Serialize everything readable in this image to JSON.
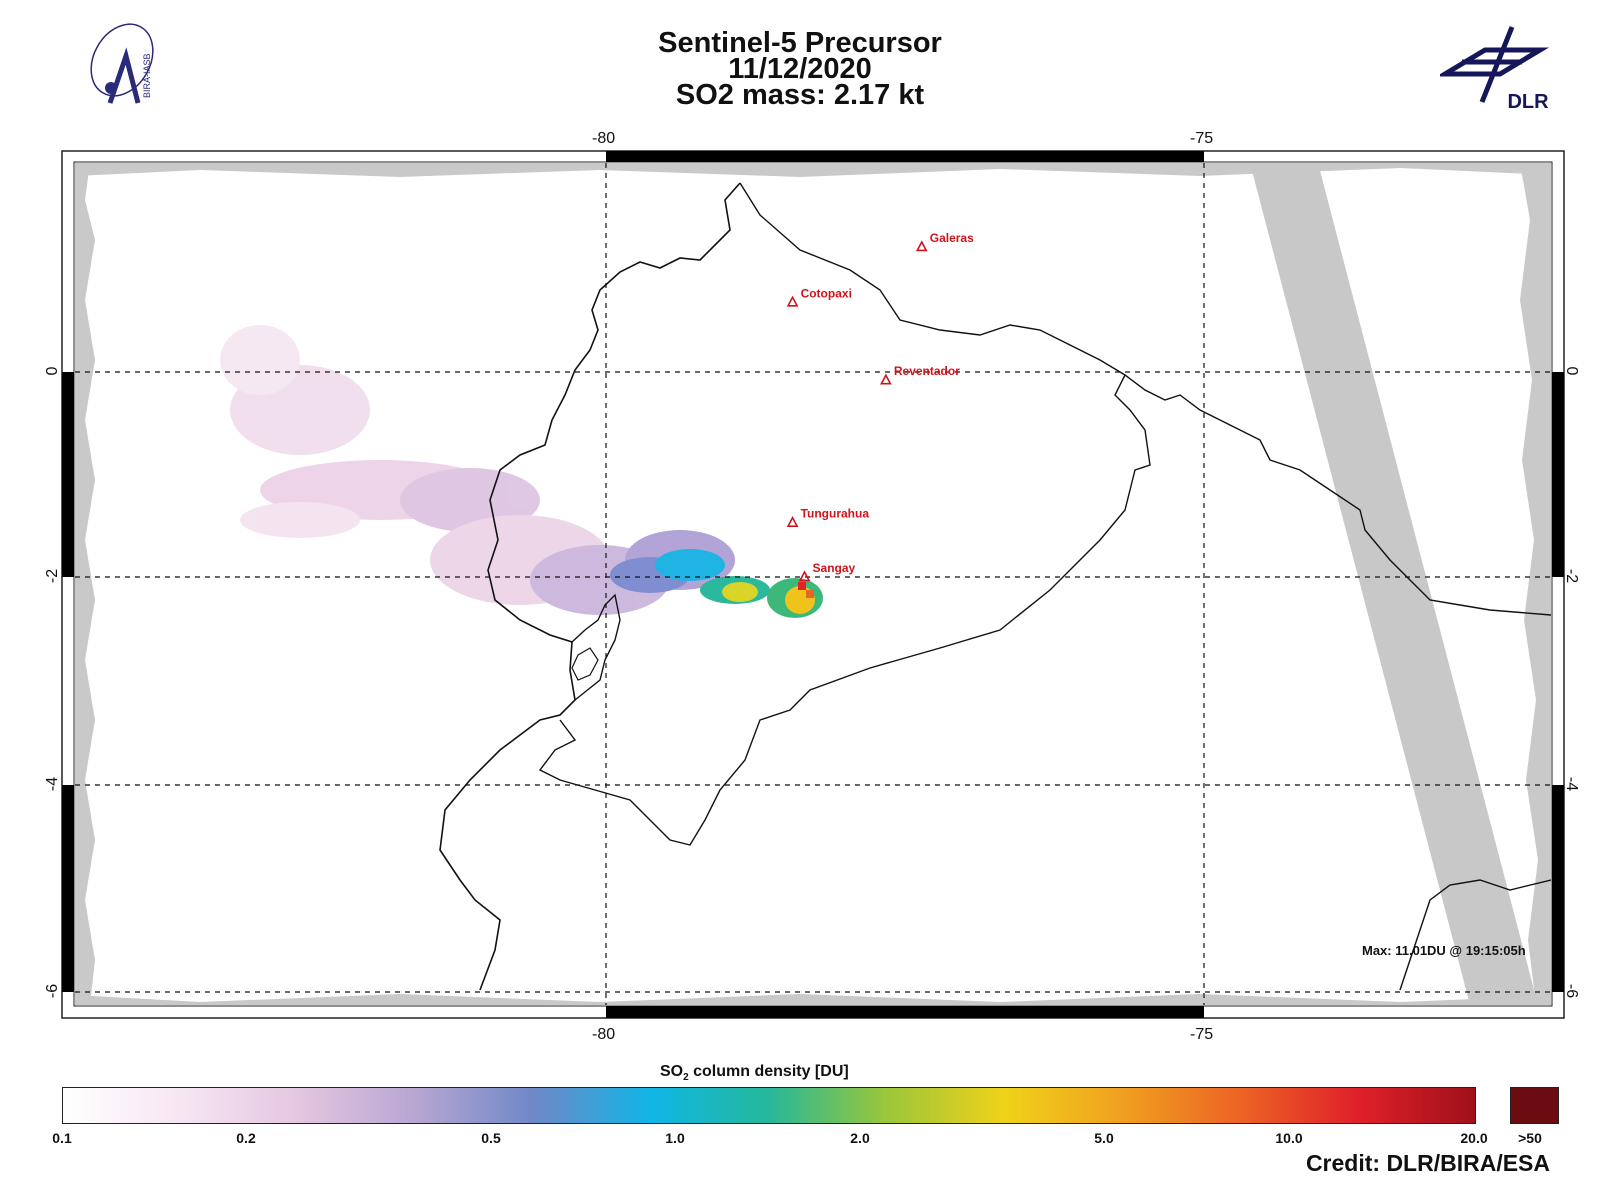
{
  "header": {
    "line1": "Sentinel-5 Precursor",
    "line2": "11/12/2020",
    "line3": "SO2 mass: 2.17    kt"
  },
  "logos": {
    "left": "BIRA-IASB",
    "right": "DLR"
  },
  "map": {
    "lon_ticks": [
      "-80",
      "-75"
    ],
    "lat_ticks": [
      "0",
      "-2",
      "-4",
      "-6"
    ],
    "volcanoes": [
      {
        "name": "Galeras",
        "lon": -77.36,
        "lat": 1.22
      },
      {
        "name": "Cotopaxi",
        "lon": -78.44,
        "lat": 0.68
      },
      {
        "name": "Reventador",
        "lon": -77.66,
        "lat": -0.08
      },
      {
        "name": "Tungurahua",
        "lon": -78.44,
        "lat": -1.47
      },
      {
        "name": "Sangay",
        "lon": -78.34,
        "lat": -2.0
      }
    ],
    "max_text": "Max:  11.01DU @ 19:15:05h",
    "colors": {
      "volcano": "#d0141c",
      "swath_gap": "#c8c8c8"
    }
  },
  "colorbar": {
    "title_prefix": "SO",
    "title_sub": "2",
    "title_suffix": " column density [DU]",
    "ticks": [
      "0.1",
      "0.2",
      "0.5",
      "1.0",
      "2.0",
      "5.0",
      "10.0",
      "20.0",
      ">50"
    ],
    "colors": [
      "#ffffff",
      "#f6e6f2",
      "#e4c6e0",
      "#b7a6d2",
      "#6f88c8",
      "#10b6e6",
      "#26b89a",
      "#9bc63a",
      "#f0d21a",
      "#f0a020",
      "#ec6424",
      "#e0202a",
      "#a0101a"
    ]
  },
  "credit": "Credit: DLR/BIRA/ESA"
}
